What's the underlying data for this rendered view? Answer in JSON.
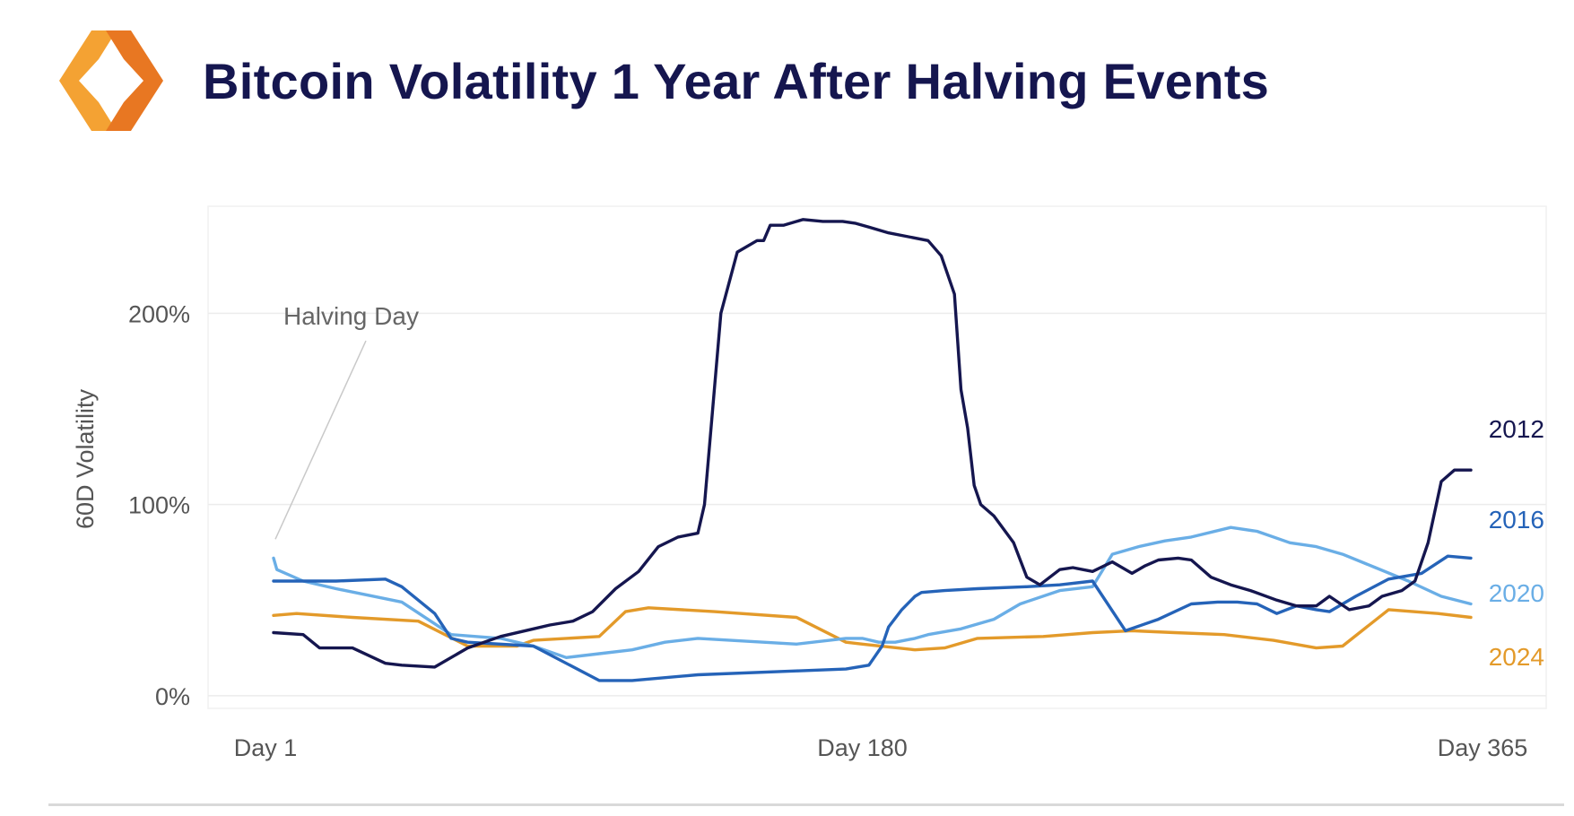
{
  "header": {
    "title": "Bitcoin Volatility 1 Year After Halving Events",
    "logo_icon": "hexagon-brackets-logo-icon"
  },
  "colors": {
    "title": "#15164f",
    "logo_light": "#f4a233",
    "logo_dark": "#e87722",
    "axis_text": "#555555",
    "grid": "#ececec",
    "s2012": "#15164f",
    "s2016": "#2563b8",
    "s2020": "#6aaee6",
    "s2024": "#e39a2a"
  },
  "chart_data": {
    "type": "line",
    "title": "Bitcoin Volatility 1 Year After Halving Events",
    "xlabel": "",
    "ylabel": "60D Volatility",
    "xlim": [
      1,
      365
    ],
    "ylim": [
      -8,
      255
    ],
    "grid": "horizontal",
    "x_ticks": [
      {
        "value": 1,
        "label": "Day 1"
      },
      {
        "value": 180,
        "label": "Day 180"
      },
      {
        "value": 365,
        "label": "Day 365"
      }
    ],
    "y_ticks": [
      {
        "value": 0,
        "label": "0%"
      },
      {
        "value": 100,
        "label": "100%"
      },
      {
        "value": 200,
        "label": "200%"
      }
    ],
    "annotation": {
      "label": "Halving Day",
      "x": 1,
      "y": 80
    },
    "legend": "end-of-line labels",
    "series": [
      {
        "name": "2012",
        "x": [
          1,
          10,
          15,
          25,
          35,
          40,
          50,
          60,
          70,
          80,
          85,
          92,
          98,
          105,
          112,
          118,
          124,
          130,
          132,
          137,
          142,
          148,
          150,
          152,
          156,
          162,
          168,
          174,
          178,
          182,
          188,
          194,
          200,
          204,
          208,
          210,
          212,
          214,
          216,
          220,
          226,
          230,
          234,
          240,
          244,
          250,
          256,
          262,
          266,
          270,
          276,
          280,
          286,
          292,
          298,
          306,
          312,
          318,
          322,
          328,
          334,
          338,
          344,
          348,
          352,
          356,
          360,
          365
        ],
        "y": [
          33,
          32,
          25,
          25,
          17,
          16,
          15,
          25,
          31,
          35,
          37,
          39,
          44,
          56,
          65,
          78,
          83,
          85,
          100,
          200,
          232,
          238,
          238,
          246,
          246,
          249,
          248,
          248,
          247,
          245,
          242,
          240,
          238,
          230,
          210,
          160,
          140,
          110,
          100,
          94,
          80,
          62,
          58,
          66,
          67,
          65,
          70,
          64,
          68,
          71,
          72,
          71,
          62,
          58,
          55,
          50,
          47,
          47,
          52,
          45,
          47,
          52,
          55,
          60,
          80,
          112,
          118,
          118
        ]
      },
      {
        "name": "2016",
        "x": [
          1,
          20,
          35,
          40,
          50,
          55,
          60,
          80,
          100,
          110,
          130,
          160,
          175,
          182,
          186,
          188,
          192,
          196,
          198,
          205,
          215,
          230,
          240,
          250,
          260,
          270,
          280,
          288,
          294,
          300,
          306,
          312,
          318,
          322,
          330,
          340,
          350,
          358,
          365
        ],
        "y": [
          60,
          60,
          61,
          57,
          43,
          30,
          28,
          26,
          8,
          8,
          11,
          13,
          14,
          16,
          26,
          36,
          45,
          52,
          54,
          55,
          56,
          57,
          58,
          60,
          34,
          40,
          48,
          49,
          49,
          48,
          43,
          47,
          45,
          44,
          52,
          61,
          64,
          73,
          72
        ]
      },
      {
        "name": "2020",
        "x": [
          1,
          2,
          10,
          20,
          40,
          55,
          70,
          80,
          90,
          100,
          110,
          120,
          130,
          160,
          175,
          180,
          185,
          190,
          196,
          200,
          210,
          220,
          228,
          240,
          250,
          256,
          264,
          272,
          280,
          292,
          300,
          310,
          318,
          326,
          336,
          346,
          356,
          365
        ],
        "y": [
          72,
          66,
          60,
          56,
          49,
          32,
          30,
          26,
          20,
          22,
          24,
          28,
          30,
          27,
          30,
          30,
          28,
          28,
          30,
          32,
          35,
          40,
          48,
          55,
          57,
          74,
          78,
          81,
          83,
          88,
          86,
          80,
          78,
          74,
          67,
          60,
          52,
          48
        ]
      },
      {
        "name": "2024",
        "x": [
          1,
          8,
          25,
          45,
          60,
          75,
          80,
          100,
          108,
          115,
          135,
          160,
          175,
          180,
          196,
          205,
          215,
          235,
          250,
          262,
          275,
          290,
          305,
          318,
          326,
          340,
          355,
          365
        ],
        "y": [
          42,
          43,
          41,
          39,
          26,
          26,
          29,
          31,
          44,
          46,
          44,
          41,
          28,
          27,
          24,
          25,
          30,
          31,
          33,
          34,
          33,
          32,
          29,
          25,
          26,
          45,
          43,
          41
        ]
      }
    ]
  }
}
